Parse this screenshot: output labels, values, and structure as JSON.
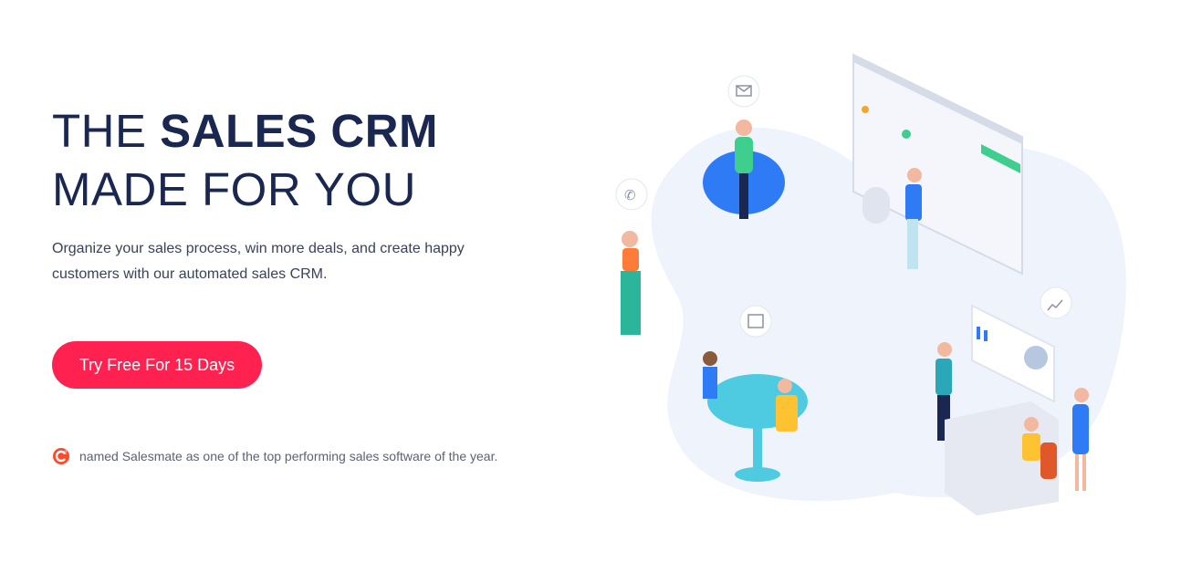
{
  "hero": {
    "title_line1_regular": "THE ",
    "title_line1_bold": "SALES CRM",
    "title_line2": "MADE FOR YOU",
    "subtitle": "Organize your sales process, win more deals, and create happy customers with our automated sales CRM.",
    "cta_label": "Try Free For 15 Days",
    "g2_text": "named Salesmate as one of the top performing sales software of the year."
  },
  "colors": {
    "primary": "#1a2750",
    "cta": "#ff2150",
    "accent_blue": "#2f7bf5",
    "accent_green": "#3ecf8e",
    "blob": "#eef3fc"
  },
  "illustration": {
    "icons": [
      "mail-icon",
      "phone-icon",
      "calendar-icon",
      "chart-icon"
    ]
  }
}
